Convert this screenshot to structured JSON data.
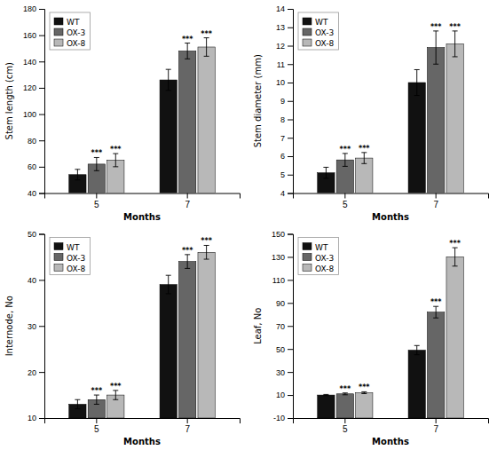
{
  "chart_data": [
    {
      "type": "bar",
      "xlabel": "Months",
      "ylabel": "Stem length (cm)",
      "categories": [
        "5",
        "7"
      ],
      "ylim": [
        40,
        180
      ],
      "yticks": [
        40,
        60,
        80,
        100,
        120,
        140,
        160,
        180
      ],
      "legend": "upper left",
      "series": [
        {
          "name": "WT",
          "color": "#111111",
          "values": [
            54,
            126
          ],
          "errors": [
            4,
            8
          ],
          "annotations": [
            null,
            null
          ]
        },
        {
          "name": "OX-3",
          "color": "#666666",
          "values": [
            62,
            148
          ],
          "errors": [
            5,
            6
          ],
          "annotations": [
            "***",
            "***"
          ]
        },
        {
          "name": "OX-8",
          "color": "#b8b8b8",
          "values": [
            65,
            151
          ],
          "errors": [
            5,
            7
          ],
          "annotations": [
            "***",
            "***"
          ]
        }
      ]
    },
    {
      "type": "bar",
      "xlabel": "Months",
      "ylabel": "Stem diameter (mm)",
      "categories": [
        "5",
        "7"
      ],
      "ylim": [
        4,
        14
      ],
      "yticks": [
        4,
        5,
        6,
        7,
        8,
        9,
        10,
        11,
        12,
        13,
        14
      ],
      "legend": "upper left",
      "series": [
        {
          "name": "WT",
          "color": "#111111",
          "values": [
            5.1,
            10.0
          ],
          "errors": [
            0.3,
            0.7
          ],
          "annotations": [
            null,
            null
          ]
        },
        {
          "name": "OX-3",
          "color": "#666666",
          "values": [
            5.8,
            11.9
          ],
          "errors": [
            0.35,
            0.9
          ],
          "annotations": [
            "***",
            "***"
          ]
        },
        {
          "name": "OX-8",
          "color": "#b8b8b8",
          "values": [
            5.9,
            12.1
          ],
          "errors": [
            0.3,
            0.7
          ],
          "annotations": [
            "***",
            "***"
          ]
        }
      ]
    },
    {
      "type": "bar",
      "xlabel": "Months",
      "ylabel": "Internode, No",
      "categories": [
        "5",
        "7"
      ],
      "ylim": [
        10,
        50
      ],
      "yticks": [
        10,
        20,
        30,
        40,
        50
      ],
      "legend": "upper left",
      "series": [
        {
          "name": "WT",
          "color": "#111111",
          "values": [
            13,
            39
          ],
          "errors": [
            1,
            2
          ],
          "annotations": [
            null,
            null
          ]
        },
        {
          "name": "OX-3",
          "color": "#666666",
          "values": [
            14,
            44
          ],
          "errors": [
            1,
            1.5
          ],
          "annotations": [
            "***",
            "***"
          ]
        },
        {
          "name": "OX-8",
          "color": "#b8b8b8",
          "values": [
            15,
            46
          ],
          "errors": [
            1,
            1.5
          ],
          "annotations": [
            "***",
            "***"
          ]
        }
      ]
    },
    {
      "type": "bar",
      "xlabel": "Months",
      "ylabel": "Leaf, No",
      "categories": [
        "5",
        "7"
      ],
      "ylim": [
        -10,
        150
      ],
      "yticks": [
        -10,
        10,
        30,
        50,
        70,
        90,
        110,
        130,
        150
      ],
      "legend": "upper left",
      "series": [
        {
          "name": "WT",
          "color": "#111111",
          "values": [
            10,
            49
          ],
          "errors": [
            0.5,
            4
          ],
          "annotations": [
            null,
            null
          ]
        },
        {
          "name": "OX-3",
          "color": "#666666",
          "values": [
            11,
            82
          ],
          "errors": [
            0.8,
            5
          ],
          "annotations": [
            "***",
            "***"
          ]
        },
        {
          "name": "OX-8",
          "color": "#b8b8b8",
          "values": [
            12,
            130
          ],
          "errors": [
            0.8,
            8
          ],
          "annotations": [
            "***",
            "***"
          ]
        }
      ]
    }
  ]
}
